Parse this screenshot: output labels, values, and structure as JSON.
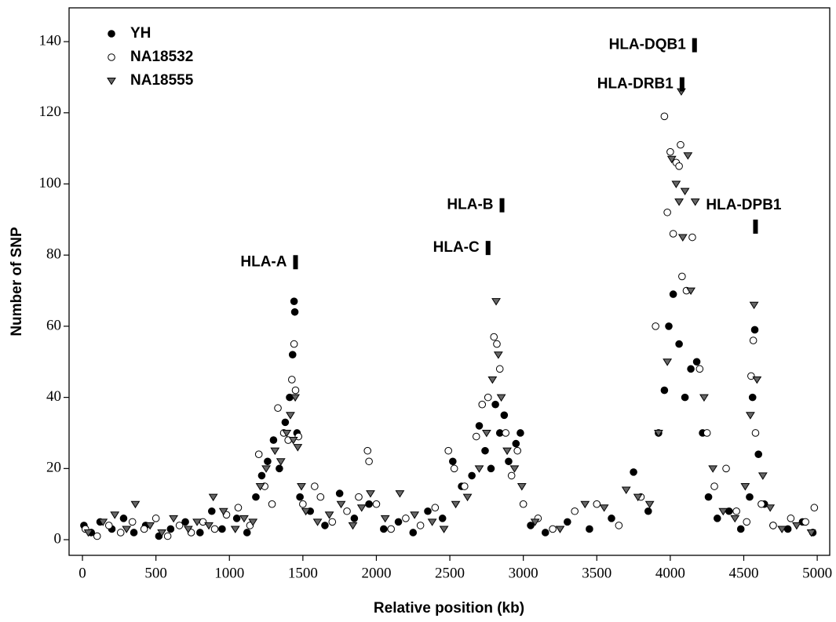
{
  "chart_data": {
    "type": "scatter",
    "x_label": "Relative position (kb)",
    "y_label": "Number of SNP",
    "xlim": [
      -91,
      5085
    ],
    "ylim": [
      -4.4,
      149.5
    ],
    "xticks": [
      0,
      500,
      1000,
      1500,
      2000,
      2500,
      3000,
      3500,
      4000,
      4500,
      5000
    ],
    "yticks": [
      0,
      20,
      40,
      60,
      80,
      100,
      120,
      140
    ],
    "grid": false,
    "legend": "top-left",
    "series": [
      {
        "name": "YH",
        "color": "#000000",
        "marker": "filled-circle",
        "x": [
          10,
          60,
          120,
          200,
          280,
          350,
          430,
          520,
          600,
          700,
          800,
          880,
          950,
          1050,
          1120,
          1180,
          1220,
          1260,
          1300,
          1340,
          1380,
          1410,
          1430,
          1440,
          1445,
          1460,
          1480,
          1550,
          1650,
          1750,
          1850,
          1950,
          2050,
          2150,
          2250,
          2350,
          2450,
          2520,
          2580,
          2650,
          2700,
          2740,
          2780,
          2810,
          2840,
          2870,
          2900,
          2950,
          2980,
          3050,
          3150,
          3300,
          3450,
          3600,
          3750,
          3850,
          3920,
          3960,
          3990,
          4020,
          4060,
          4100,
          4140,
          4180,
          4220,
          4260,
          4320,
          4400,
          4480,
          4540,
          4560,
          4575,
          4600,
          4640,
          4700,
          4800,
          4900,
          4970
        ],
        "values": [
          4,
          2,
          5,
          3,
          6,
          2,
          4,
          1,
          3,
          5,
          2,
          8,
          3,
          6,
          2,
          12,
          18,
          22,
          28,
          20,
          33,
          40,
          52,
          67,
          64,
          30,
          12,
          8,
          4,
          13,
          6,
          10,
          3,
          5,
          2,
          8,
          6,
          22,
          15,
          18,
          32,
          25,
          20,
          38,
          30,
          35,
          22,
          27,
          30,
          4,
          2,
          5,
          3,
          6,
          19,
          8,
          30,
          42,
          60,
          69,
          55,
          40,
          48,
          50,
          30,
          12,
          6,
          8,
          3,
          12,
          40,
          59,
          24,
          10,
          4,
          3,
          5,
          2
        ]
      },
      {
        "name": "NA18532",
        "color": "#ffffff",
        "marker": "open-circle",
        "x": [
          20,
          100,
          180,
          260,
          340,
          420,
          500,
          580,
          660,
          740,
          820,
          900,
          980,
          1060,
          1140,
          1200,
          1240,
          1290,
          1330,
          1370,
          1400,
          1425,
          1440,
          1450,
          1470,
          1500,
          1580,
          1620,
          1700,
          1800,
          1880,
          1940,
          1950,
          2000,
          2100,
          2200,
          2300,
          2400,
          2490,
          2530,
          2600,
          2680,
          2720,
          2760,
          2800,
          2820,
          2840,
          2880,
          2920,
          2960,
          3000,
          3100,
          3200,
          3350,
          3500,
          3650,
          3800,
          3900,
          3960,
          3980,
          4000,
          4020,
          4040,
          4060,
          4070,
          4080,
          4110,
          4150,
          4200,
          4250,
          4300,
          4380,
          4450,
          4520,
          4550,
          4565,
          4580,
          4620,
          4700,
          4820,
          4920,
          4980
        ],
        "values": [
          3,
          1,
          4,
          2,
          5,
          3,
          6,
          1,
          4,
          2,
          5,
          3,
          7,
          9,
          4,
          24,
          15,
          10,
          37,
          30,
          28,
          45,
          55,
          42,
          29,
          10,
          15,
          12,
          5,
          8,
          12,
          25,
          22,
          10,
          3,
          6,
          4,
          9,
          25,
          20,
          15,
          29,
          38,
          40,
          57,
          55,
          48,
          30,
          18,
          25,
          10,
          6,
          3,
          8,
          10,
          4,
          12,
          60,
          119,
          92,
          109,
          86,
          106,
          105,
          111,
          74,
          70,
          85,
          48,
          30,
          15,
          20,
          8,
          5,
          46,
          56,
          30,
          10,
          4,
          6,
          5,
          9
        ]
      },
      {
        "name": "NA18555",
        "color": "#666666",
        "marker": "triangle-down",
        "x": [
          40,
          140,
          220,
          300,
          360,
          460,
          540,
          620,
          720,
          780,
          860,
          890,
          960,
          1040,
          1100,
          1160,
          1210,
          1250,
          1310,
          1350,
          1390,
          1415,
          1435,
          1448,
          1465,
          1490,
          1520,
          1600,
          1680,
          1760,
          1840,
          1900,
          1960,
          2060,
          2160,
          2260,
          2380,
          2460,
          2540,
          2620,
          2700,
          2750,
          2790,
          2815,
          2830,
          2850,
          2890,
          2940,
          2990,
          3080,
          3250,
          3420,
          3550,
          3700,
          3780,
          3860,
          3920,
          3980,
          4010,
          4040,
          4060,
          4075,
          4085,
          4100,
          4120,
          4140,
          4170,
          4230,
          4290,
          4360,
          4440,
          4510,
          4545,
          4570,
          4590,
          4630,
          4680,
          4760,
          4860,
          4960
        ],
        "values": [
          2,
          5,
          7,
          3,
          10,
          4,
          2,
          6,
          3,
          5,
          4,
          12,
          8,
          3,
          6,
          5,
          15,
          20,
          25,
          22,
          30,
          35,
          28,
          40,
          26,
          15,
          8,
          5,
          7,
          10,
          4,
          9,
          13,
          6,
          13,
          7,
          5,
          3,
          10,
          12,
          20,
          30,
          45,
          67,
          52,
          40,
          25,
          20,
          15,
          5,
          3,
          10,
          9,
          14,
          12,
          10,
          30,
          50,
          107,
          100,
          95,
          126,
          85,
          98,
          108,
          70,
          95,
          40,
          20,
          8,
          6,
          15,
          35,
          66,
          45,
          18,
          9,
          3,
          4,
          2
        ]
      }
    ],
    "annotations": [
      {
        "text": "HLA-A",
        "x": 1450,
        "y": 78
      },
      {
        "text": "HLA-C",
        "x": 2760,
        "y": 82
      },
      {
        "text": "HLA-B",
        "x": 2855,
        "y": 94
      },
      {
        "text": "HLA-DRB1",
        "x": 4080,
        "y": 128
      },
      {
        "text": "HLA-DQB1",
        "x": 4165,
        "y": 139
      },
      {
        "text": "HLA-DPB1",
        "x": 4580,
        "y": 88,
        "label_side": "above"
      }
    ]
  }
}
